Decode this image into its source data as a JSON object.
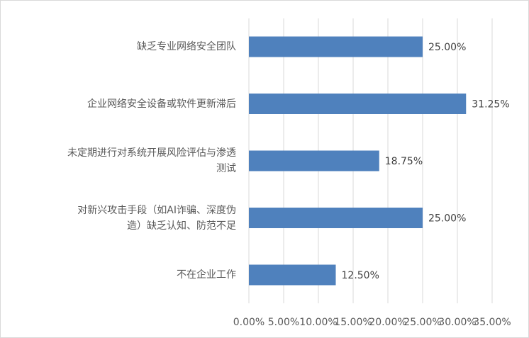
{
  "chart_data": {
    "type": "bar",
    "orientation": "horizontal",
    "categories": [
      "缺乏专业网络安全团队",
      "企业网络安全设备或软件更新滞后",
      "未定期进行对系统开展风险评估与渗透测试",
      "对新兴攻击手段（如AI诈骗、深度伪造）缺乏认知、防范不足",
      "不在企业工作"
    ],
    "category_lines": [
      [
        "缺乏专业网络安全团队"
      ],
      [
        "企业网络安全设备或软件更新滞后"
      ],
      [
        "未定期进行对系统开展风险评估与渗透",
        "测试"
      ],
      [
        "对新兴攻击手段（如AI诈骗、深度伪",
        "造）缺乏认知、防范不足"
      ],
      [
        "不在企业工作"
      ]
    ],
    "values": [
      25.0,
      31.25,
      18.75,
      25.0,
      12.5
    ],
    "data_labels": [
      "25.00%",
      "31.25%",
      "18.75%",
      "25.00%",
      "12.50%"
    ],
    "xlim": [
      0,
      35
    ],
    "x_ticks": [
      0,
      5,
      10,
      15,
      20,
      25,
      30,
      35
    ],
    "x_tick_labels": [
      "0.00%",
      "5.00%",
      "10.00%",
      "15.00%",
      "20.00%",
      "25.00%",
      "30.00%",
      "35.00%"
    ],
    "grid": "vertical",
    "bar_color": "#4F81BD",
    "title": "",
    "xlabel": "",
    "ylabel": ""
  }
}
